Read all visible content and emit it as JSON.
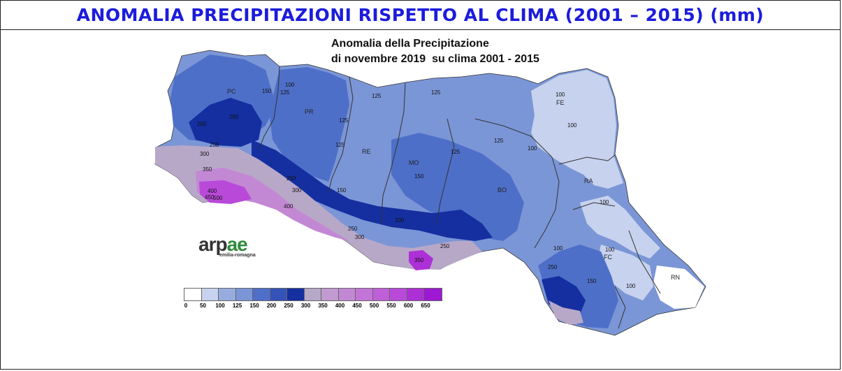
{
  "header": {
    "title": "ANOMALIA PRECIPITAZIONI  RISPETTO AL CLIMA (2001 – 2015) (mm)",
    "title_color": "#1c1cdc"
  },
  "map": {
    "title_line1": "Anomalia della Precipitazione",
    "title_line2": "di novembre 2019  su clima 2001 - 2015",
    "provinces": [
      "PC",
      "PR",
      "RE",
      "MO",
      "BO",
      "FE",
      "RA",
      "FC",
      "RN"
    ],
    "isoline_labels": [
      "150",
      "125",
      "100",
      "200",
      "200",
      "300",
      "350",
      "250",
      "125",
      "125",
      "125",
      "125",
      "100",
      "100",
      "125",
      "150",
      "200",
      "150",
      "250",
      "300",
      "400",
      "450",
      "500",
      "400",
      "250",
      "300",
      "350",
      "250",
      "125",
      "100",
      "100",
      "100",
      "150",
      "100",
      "250",
      "100"
    ]
  },
  "logo": {
    "word_main": "arp",
    "word_accent": "ae",
    "subtitle": "emilia-romagna"
  },
  "legend": {
    "labels": [
      "0",
      "50",
      "100",
      "125",
      "150",
      "200",
      "250",
      "300",
      "350",
      "400",
      "450",
      "500",
      "550",
      "600",
      "650"
    ],
    "colors": [
      "#ffffff",
      "#c7d2ee",
      "#96acde",
      "#7b96d6",
      "#4e6fc8",
      "#3552b8",
      "#152fa0",
      "#b8a8c8",
      "#c29ad2",
      "#c388d4",
      "#c275d6",
      "#bf5fd8",
      "#b94ad9",
      "#ad30d6",
      "#9d18d2"
    ]
  }
}
